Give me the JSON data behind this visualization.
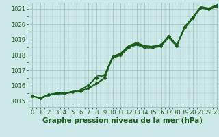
{
  "title": "Graphe pression niveau de la mer (hPa)",
  "background_color": "#cce8e8",
  "grid_color": "#99bbbb",
  "line_color": "#1a5c1a",
  "marker_color": "#1a5c1a",
  "xlim": [
    -0.5,
    23
  ],
  "ylim": [
    1014.6,
    1021.4
  ],
  "xticks": [
    0,
    1,
    2,
    3,
    4,
    5,
    6,
    7,
    8,
    9,
    10,
    11,
    12,
    13,
    14,
    15,
    16,
    17,
    18,
    19,
    20,
    21,
    22,
    23
  ],
  "yticks": [
    1015,
    1016,
    1017,
    1018,
    1019,
    1020,
    1021
  ],
  "series": [
    {
      "y": [
        1015.3,
        1015.2,
        1015.4,
        1015.5,
        1015.5,
        1015.6,
        1015.65,
        1015.85,
        1016.15,
        1016.5,
        1017.85,
        1018.0,
        1018.5,
        1018.7,
        1018.5,
        1018.5,
        1018.6,
        1019.2,
        1018.6,
        1019.8,
        1020.4,
        1021.1,
        1021.0,
        1021.2
      ],
      "marker": "D",
      "markersize": 2.5,
      "linewidth": 1.0,
      "zorder": 3
    },
    {
      "y": [
        1015.3,
        1015.15,
        1015.35,
        1015.45,
        1015.45,
        1015.55,
        1015.6,
        1015.8,
        1016.1,
        1016.45,
        1017.8,
        1017.95,
        1018.45,
        1018.65,
        1018.45,
        1018.45,
        1018.55,
        1019.1,
        1018.55,
        1019.75,
        1020.35,
        1021.05,
        1020.95,
        1021.15
      ],
      "marker": null,
      "markersize": 0,
      "linewidth": 1.0,
      "zorder": 2
    },
    {
      "y": [
        1015.3,
        1015.2,
        1015.4,
        1015.5,
        1015.5,
        1015.6,
        1015.7,
        1016.05,
        1016.5,
        1016.65,
        1017.85,
        1018.05,
        1018.55,
        1018.75,
        1018.55,
        1018.55,
        1018.65,
        1019.2,
        1018.65,
        1019.85,
        1020.45,
        1021.1,
        1021.0,
        1021.2
      ],
      "marker": "D",
      "markersize": 2.5,
      "linewidth": 1.0,
      "zorder": 3
    },
    {
      "y": [
        1015.3,
        1015.15,
        1015.35,
        1015.5,
        1015.5,
        1015.6,
        1015.7,
        1016.0,
        1016.6,
        1016.7,
        1017.9,
        1018.1,
        1018.6,
        1018.8,
        1018.6,
        1018.55,
        1018.65,
        1019.25,
        1018.65,
        1019.85,
        1020.45,
        1021.15,
        1021.05,
        1021.25
      ],
      "marker": null,
      "markersize": 0,
      "linewidth": 1.0,
      "zorder": 2
    }
  ],
  "title_fontsize": 7.5,
  "tick_fontsize": 6.0,
  "tick_color": "#1a5c1a",
  "figsize": [
    3.2,
    2.0
  ],
  "dpi": 100
}
